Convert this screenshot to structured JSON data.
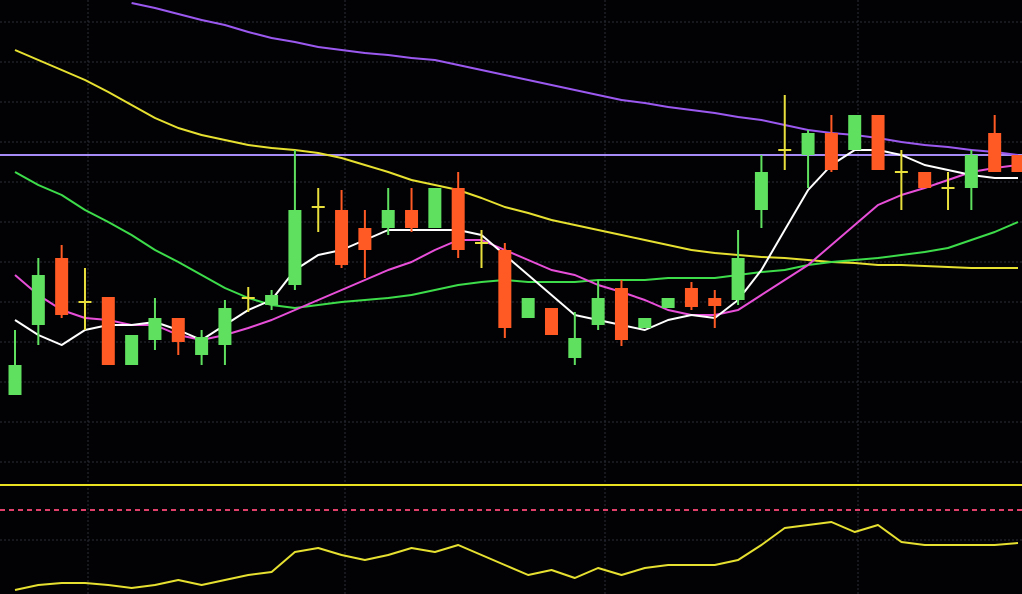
{
  "chart_data": {
    "type": "candlestick",
    "categories": [
      null,
      null,
      null,
      null,
      null,
      null,
      null,
      null,
      null,
      null,
      null,
      null,
      null,
      null,
      null,
      null,
      null,
      null,
      null,
      null,
      null,
      null,
      null,
      null,
      null,
      null,
      null,
      null,
      null,
      null,
      null,
      null,
      null,
      null,
      null,
      null,
      null,
      null,
      null,
      null,
      null,
      null,
      null,
      null
    ],
    "ylim": [
      0,
      600
    ],
    "up_color": "#5fe05f",
    "down_color": "#ff5a24",
    "flat_color": "#e8de3c",
    "open": [
      205,
      275,
      342,
      298,
      303,
      235,
      260,
      282,
      245,
      255,
      302,
      295,
      315,
      393,
      390,
      372,
      372,
      390,
      372,
      412,
      357,
      350,
      282,
      292,
      242,
      275,
      312,
      272,
      292,
      312,
      302,
      300,
      390,
      450,
      445,
      467,
      450,
      485,
      428,
      428,
      412,
      412,
      467,
      445
    ],
    "close": [
      235,
      325,
      285,
      298,
      235,
      265,
      282,
      258,
      263,
      292,
      302,
      305,
      390,
      393,
      335,
      350,
      390,
      372,
      412,
      350,
      357,
      272,
      302,
      265,
      262,
      302,
      260,
      282,
      302,
      293,
      294,
      342,
      428,
      450,
      467,
      430,
      485,
      430,
      428,
      412,
      412,
      445,
      428,
      428
    ],
    "high": [
      270,
      342,
      355,
      332,
      303,
      265,
      302,
      282,
      270,
      300,
      313,
      310,
      450,
      412,
      410,
      390,
      412,
      412,
      412,
      428,
      370,
      357,
      302,
      292,
      288,
      320,
      320,
      282,
      302,
      318,
      310,
      370,
      445,
      505,
      470,
      485,
      485,
      485,
      450,
      428,
      428,
      450,
      485,
      445
    ],
    "low": [
      205,
      255,
      282,
      270,
      235,
      235,
      250,
      245,
      235,
      235,
      288,
      290,
      310,
      368,
      332,
      322,
      365,
      368,
      372,
      342,
      332,
      262,
      282,
      265,
      235,
      270,
      254,
      272,
      292,
      290,
      272,
      295,
      372,
      430,
      412,
      428,
      450,
      430,
      390,
      412,
      390,
      390,
      428,
      428
    ],
    "series": [
      {
        "color": "#e6e030",
        "values": [
          550,
          540,
          530,
          520,
          508,
          495,
          482,
          472,
          465,
          460,
          455,
          452,
          450,
          447,
          442,
          435,
          428,
          420,
          415,
          410,
          402,
          393,
          387,
          380,
          375,
          370,
          365,
          360,
          355,
          350,
          347,
          345,
          343,
          342,
          340,
          338,
          337,
          335,
          335,
          334,
          333,
          332,
          332,
          332
        ]
      },
      {
        "color": "#9b59f0",
        "values": [
          null,
          null,
          null,
          null,
          null,
          597,
          592,
          586,
          580,
          575,
          568,
          562,
          558,
          553,
          550,
          547,
          545,
          542,
          540,
          535,
          530,
          525,
          520,
          515,
          510,
          505,
          500,
          497,
          493,
          490,
          487,
          483,
          480,
          475,
          470,
          467,
          465,
          462,
          458,
          455,
          453,
          450,
          448,
          445
        ]
      },
      {
        "color": "#3ddc4a",
        "values": [
          428,
          415,
          405,
          390,
          378,
          365,
          350,
          338,
          325,
          312,
          302,
          295,
          292,
          295,
          298,
          300,
          302,
          305,
          310,
          315,
          318,
          320,
          318,
          318,
          318,
          320,
          320,
          320,
          322,
          322,
          322,
          325,
          328,
          330,
          335,
          338,
          340,
          342,
          345,
          348,
          352,
          360,
          368,
          378
        ]
      },
      {
        "color": "#e84fd8",
        "values": [
          325,
          305,
          290,
          282,
          280,
          275,
          275,
          265,
          260,
          265,
          272,
          280,
          290,
          300,
          310,
          320,
          330,
          338,
          350,
          360,
          360,
          350,
          340,
          330,
          325,
          315,
          308,
          300,
          290,
          285,
          285,
          290,
          305,
          320,
          335,
          355,
          375,
          395,
          405,
          412,
          420,
          428,
          432,
          435
        ]
      },
      {
        "color": "#ffffff",
        "values": [
          280,
          265,
          255,
          270,
          275,
          275,
          278,
          270,
          260,
          275,
          290,
          300,
          330,
          345,
          350,
          360,
          370,
          370,
          370,
          370,
          365,
          345,
          325,
          305,
          285,
          280,
          275,
          270,
          280,
          285,
          282,
          300,
          330,
          370,
          410,
          435,
          450,
          450,
          445,
          435,
          430,
          425,
          422,
          422
        ]
      },
      {
        "color": "#e6e030",
        "values": [
          10,
          15,
          17,
          17,
          15,
          12,
          15,
          20,
          15,
          20,
          25,
          28,
          48,
          52,
          45,
          40,
          45,
          52,
          48,
          55,
          45,
          35,
          25,
          30,
          22,
          32,
          25,
          32,
          35,
          35,
          35,
          40,
          55,
          72,
          75,
          78,
          68,
          75,
          58,
          55,
          55,
          55,
          55,
          57
        ]
      }
    ],
    "hlines": [
      {
        "value": 445,
        "color": "#a68af5",
        "dashed": false
      },
      {
        "value": 115,
        "color": "#e8e020",
        "dashed": false
      },
      {
        "value": 90,
        "color": "#e0406a",
        "dashed": true
      }
    ]
  }
}
